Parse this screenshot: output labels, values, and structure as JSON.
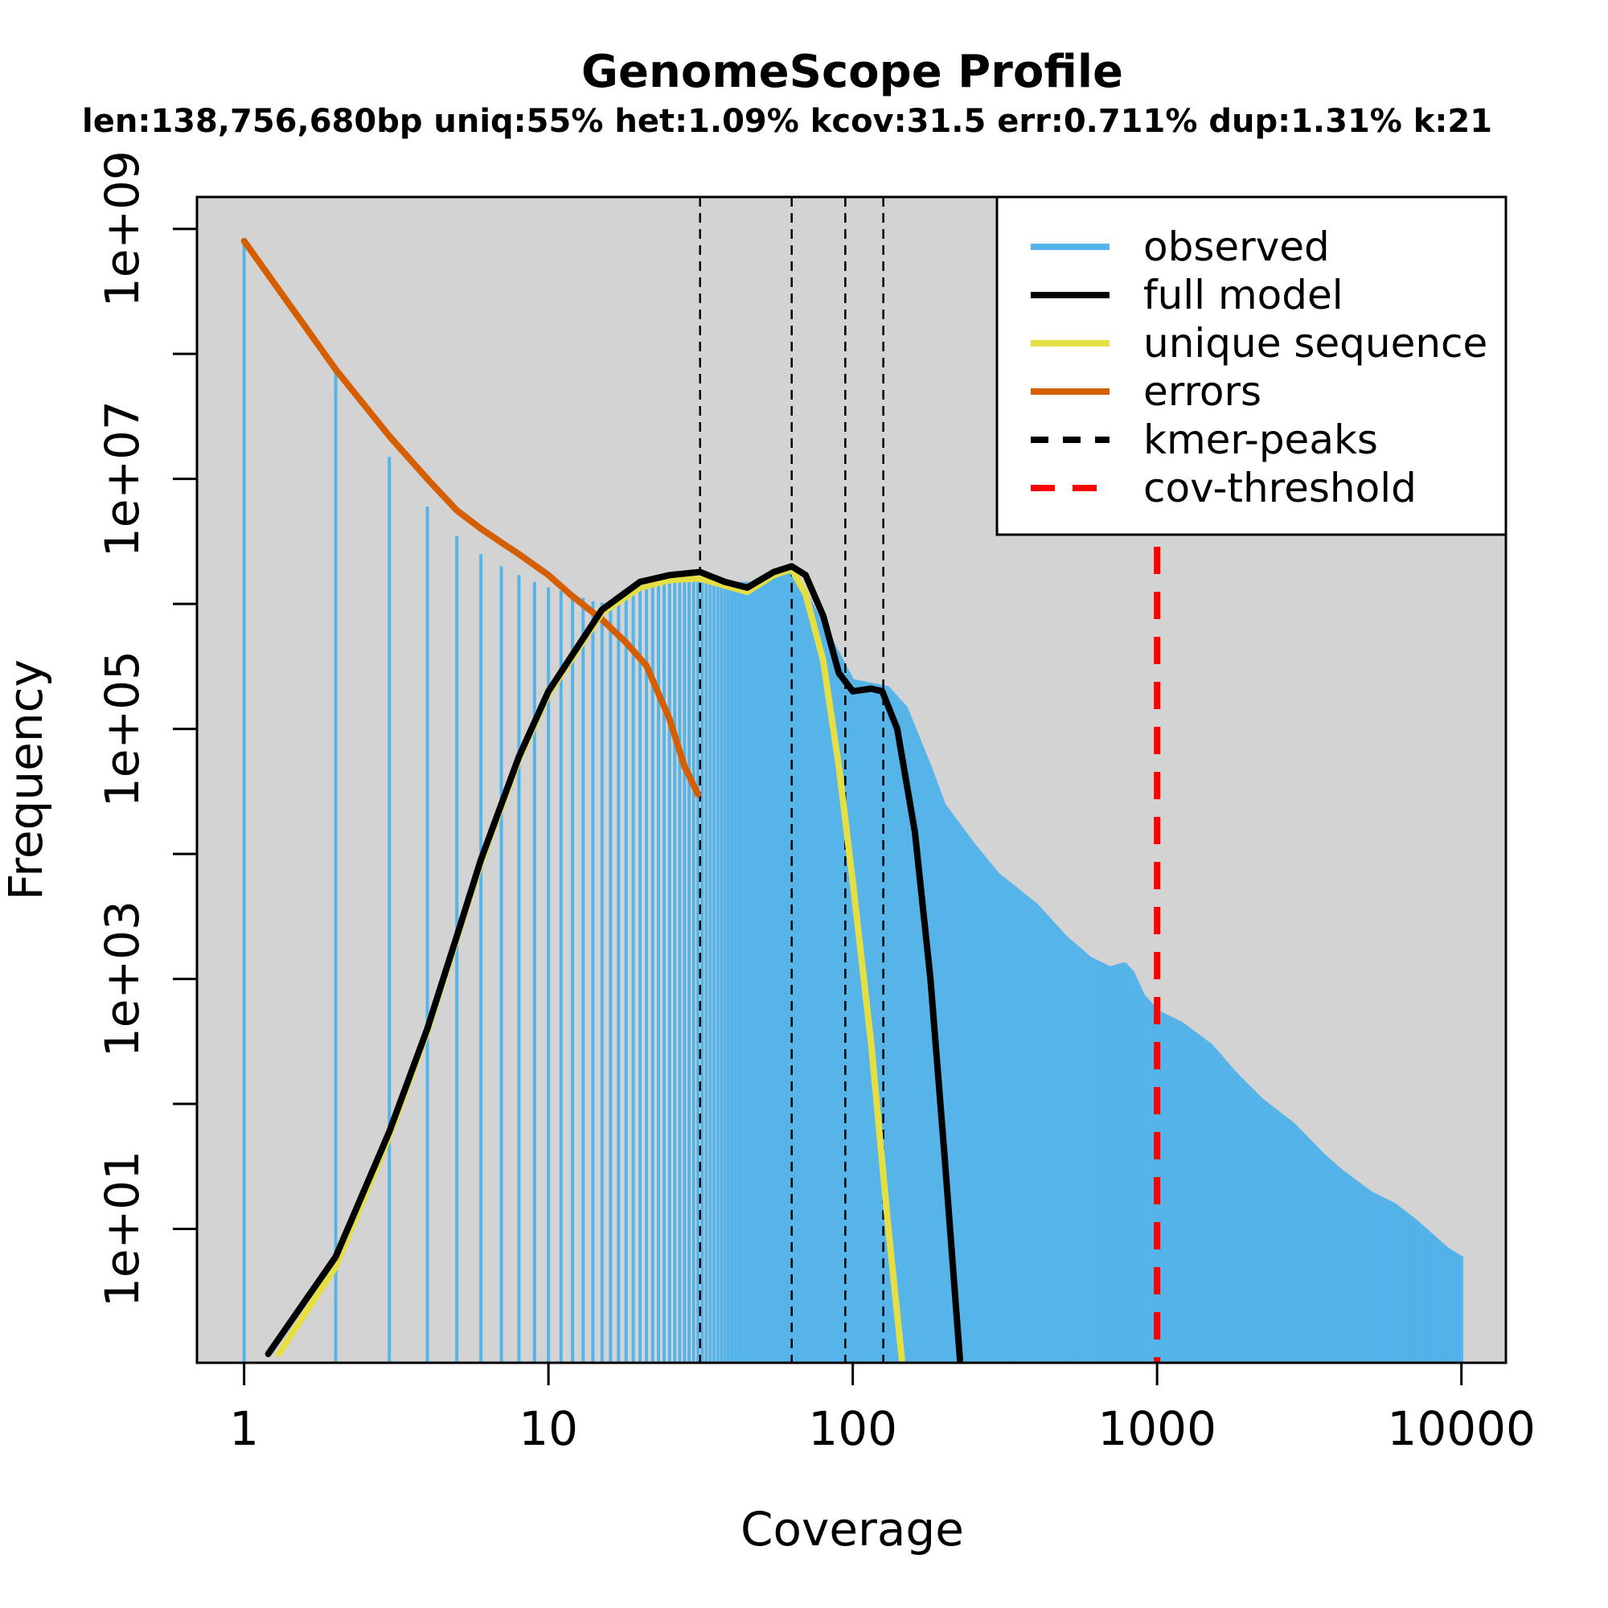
{
  "chart_data": {
    "type": "line",
    "title": "GenomeScope Profile",
    "subtitle": "len:138,756,680bp uniq:55%  het:1.09% kcov:31.5 err:0.711%  dup:1.31%  k:21",
    "xlabel": "Coverage",
    "ylabel": "Frequency",
    "x_scale": "log",
    "y_scale": "log",
    "xlim": [
      0.7,
      14000
    ],
    "ylim": [
      0.85,
      1800000000
    ],
    "x_ticks": [
      1,
      10,
      100,
      1000,
      10000
    ],
    "x_tick_labels": [
      "1",
      "10",
      "100",
      "1000",
      "10000"
    ],
    "y_ticks": [
      10,
      1000,
      100000,
      10000000,
      1000000000
    ],
    "y_tick_labels": [
      "1e+01",
      "1e+03",
      "1e+05",
      "1e+07",
      "1e+09"
    ],
    "y_minor_ticks": [
      100,
      10000,
      1000000,
      100000000
    ],
    "legend": {
      "position": "top-right",
      "entries": [
        {
          "label": "observed",
          "color": "#56B4E9",
          "style": "solid"
        },
        {
          "label": "full model",
          "color": "#000000",
          "style": "solid"
        },
        {
          "label": "unique sequence",
          "color": "#E6DF44",
          "style": "solid"
        },
        {
          "label": "errors",
          "color": "#D55E00",
          "style": "solid"
        },
        {
          "label": "kmer-peaks",
          "color": "#000000",
          "style": "dashed"
        },
        {
          "label": "cov-threshold",
          "color": "#FF0000",
          "style": "dashed"
        }
      ]
    },
    "colors": {
      "background": "#D3D3D3",
      "observed": "#56B4E9",
      "full_model": "#000000",
      "unique_sequence": "#E6DF44",
      "errors": "#D55E00",
      "kmer_peaks": "#000000",
      "cov_threshold": "#FF0000"
    },
    "observed_envelope": [
      [
        1,
        800000000
      ],
      [
        2,
        70000000
      ],
      [
        3,
        15000000
      ],
      [
        4,
        6000000
      ],
      [
        5,
        3500000
      ],
      [
        6,
        2500000
      ],
      [
        7,
        2000000
      ],
      [
        8,
        1700000
      ],
      [
        9,
        1500000
      ],
      [
        10,
        1350000
      ],
      [
        12,
        1200000
      ],
      [
        14,
        1050000
      ],
      [
        16,
        1000000
      ],
      [
        18,
        1100000
      ],
      [
        20,
        1300000
      ],
      [
        25,
        1600000
      ],
      [
        31,
        1800000
      ],
      [
        40,
        1500000
      ],
      [
        50,
        1500000
      ],
      [
        63,
        2000000
      ],
      [
        80,
        700000
      ],
      [
        100,
        250000
      ],
      [
        130,
        220000
      ],
      [
        150,
        150000
      ],
      [
        180,
        50000
      ],
      [
        200,
        25000
      ],
      [
        250,
        12000
      ],
      [
        300,
        7000
      ],
      [
        400,
        4000
      ],
      [
        500,
        2200
      ],
      [
        600,
        1500
      ],
      [
        700,
        1250
      ],
      [
        780,
        1350
      ],
      [
        830,
        1150
      ],
      [
        900,
        750
      ],
      [
        1000,
        560
      ],
      [
        1200,
        450
      ],
      [
        1500,
        300
      ],
      [
        1800,
        180
      ],
      [
        2200,
        110
      ],
      [
        2800,
        70
      ],
      [
        3500,
        40
      ],
      [
        4000,
        30
      ],
      [
        5000,
        20
      ],
      [
        6000,
        16
      ],
      [
        7000,
        12
      ],
      [
        8000,
        9
      ],
      [
        9000,
        7
      ],
      [
        10000,
        6
      ]
    ],
    "series": [
      {
        "name": "full model",
        "points": [
          [
            1.2,
            1
          ],
          [
            2,
            6
          ],
          [
            3,
            60
          ],
          [
            4,
            400
          ],
          [
            5,
            2200
          ],
          [
            6,
            9000
          ],
          [
            8,
            60000
          ],
          [
            10,
            200000
          ],
          [
            15,
            900000
          ],
          [
            20,
            1500000
          ],
          [
            25,
            1700000
          ],
          [
            31.5,
            1800000
          ],
          [
            38,
            1500000
          ],
          [
            45,
            1350000
          ],
          [
            55,
            1800000
          ],
          [
            63,
            2000000
          ],
          [
            70,
            1700000
          ],
          [
            80,
            800000
          ],
          [
            90,
            280000
          ],
          [
            100,
            200000
          ],
          [
            115,
            210000
          ],
          [
            125,
            200000
          ],
          [
            140,
            100000
          ],
          [
            160,
            15000
          ],
          [
            180,
            1000
          ],
          [
            200,
            40
          ],
          [
            225,
            0.9
          ]
        ]
      },
      {
        "name": "unique sequence",
        "points": [
          [
            1.3,
            1
          ],
          [
            2,
            5
          ],
          [
            3,
            55
          ],
          [
            4,
            380
          ],
          [
            5,
            2100
          ],
          [
            6,
            8500
          ],
          [
            8,
            57000
          ],
          [
            10,
            190000
          ],
          [
            15,
            850000
          ],
          [
            20,
            1350000
          ],
          [
            25,
            1550000
          ],
          [
            31.5,
            1600000
          ],
          [
            38,
            1400000
          ],
          [
            45,
            1250000
          ],
          [
            55,
            1700000
          ],
          [
            63,
            1900000
          ],
          [
            70,
            1200000
          ],
          [
            80,
            350000
          ],
          [
            90,
            50000
          ],
          [
            100,
            6000
          ],
          [
            115,
            300
          ],
          [
            130,
            12
          ],
          [
            145,
            0.9
          ]
        ]
      },
      {
        "name": "errors",
        "points": [
          [
            1,
            800000000
          ],
          [
            2,
            75000000
          ],
          [
            3,
            22000000
          ],
          [
            4,
            10000000
          ],
          [
            5,
            5600000
          ],
          [
            6,
            4000000
          ],
          [
            7,
            3100000
          ],
          [
            8,
            2500000
          ],
          [
            10,
            1700000
          ],
          [
            12,
            1150000
          ],
          [
            15,
            750000
          ],
          [
            18,
            490000
          ],
          [
            21,
            320000
          ],
          [
            25,
            120000
          ],
          [
            28,
            50000
          ],
          [
            31,
            30000
          ]
        ]
      }
    ],
    "kmer_peaks": [
      31.5,
      63,
      94.5,
      126
    ],
    "cov_threshold": 1000
  }
}
